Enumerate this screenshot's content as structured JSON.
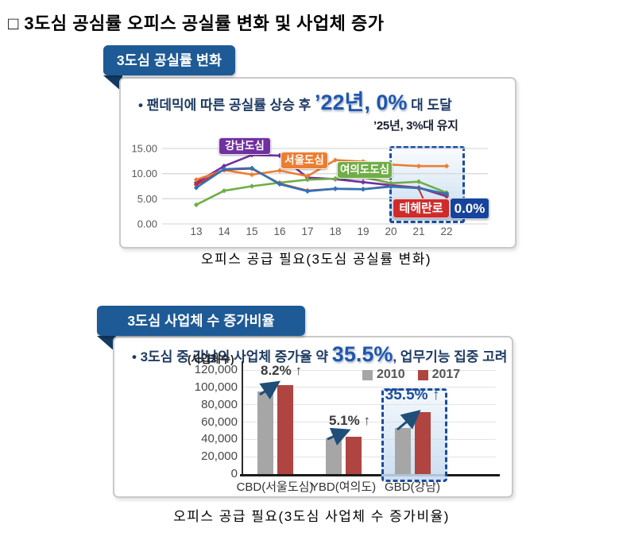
{
  "page": {
    "title": "□ 3도심 공심률 오피스 공실률 변화 및 사업체 증가"
  },
  "vacancy": {
    "tab_title": "3도심 공실률 변화",
    "bullet_prefix": "• 팬데믹에 따른 공실률 상승 후 ",
    "bullet_highlight": "’22년, 0%",
    "bullet_suffix": " 대 도달",
    "caption": "오피스 공급 필요(3도심 공실률 변화)"
  },
  "business": {
    "tab_title": "3도심 사업체 수 증가비율",
    "bullet_prefix": "• 3도심 중 강남의 사업체 증가율 약 ",
    "bullet_highlight": "35.5%",
    "bullet_suffix": ", 업무기능 집중 고려",
    "caption": "오피스 공급 필요(3도심 사업체 수 증가비율)"
  },
  "chart_data": [
    {
      "type": "line",
      "title": "3도심 공실률 변화",
      "x": [
        "13",
        "14",
        "15",
        "16",
        "17",
        "18",
        "19",
        "20",
        "21",
        "22"
      ],
      "yticks": [
        "0.00",
        "5.00",
        "10.00",
        "15.00"
      ],
      "ylim": [
        0,
        15
      ],
      "grid": true,
      "series": [
        {
          "name": "강남도심",
          "color": "#7030a0",
          "values": [
            8.2,
            11.5,
            13.7,
            13.6,
            9.2,
            8.9,
            8.3,
            7.7,
            7.2,
            5.5
          ]
        },
        {
          "name": "서울도심",
          "color": "#ed7d31",
          "values": [
            8.8,
            10.7,
            9.8,
            10.6,
            9.5,
            12.7,
            12.4,
            11.8,
            11.5,
            11.5
          ]
        },
        {
          "name": "여의도도심",
          "color": "#70ad47",
          "values": [
            3.8,
            6.6,
            7.5,
            8.2,
            8.8,
            9.0,
            9.3,
            8.1,
            8.4,
            6.2
          ]
        },
        {
          "name": "테헤란로",
          "color": "#cf2b2b",
          "values": [
            7.8,
            10.8,
            11.0,
            8.0,
            6.6,
            7.0,
            6.9,
            7.5,
            7.2,
            5.8
          ]
        },
        {
          "name": "",
          "color": "#2e75b6",
          "values": [
            7.2,
            10.9,
            11.1,
            7.9,
            6.5,
            7.0,
            6.9,
            7.4,
            7.1,
            6.0
          ]
        }
      ],
      "highlight_range": [
        "20",
        "22"
      ],
      "highlight_label": "’25년, 3%대 유지",
      "value_badge": "0.0%"
    },
    {
      "type": "bar",
      "title": "3도심 사업체 수 증가비율",
      "categories": [
        "CBD(서울도심)",
        "YBD(여의도)",
        "GBD(강남)"
      ],
      "series": [
        {
          "name": "2010",
          "color": "#a6a6a6",
          "values": [
            95000,
            41000,
            53000
          ]
        },
        {
          "name": "2017",
          "color": "#b04441",
          "values": [
            102800,
            43100,
            71800
          ]
        }
      ],
      "ylabel": "(사업체수)",
      "yticks": [
        0,
        20000,
        40000,
        60000,
        80000,
        100000,
        120000
      ],
      "ylim": [
        0,
        120000
      ],
      "grid": true,
      "legend_position": "top-right",
      "annotations": [
        {
          "category": "CBD(서울도심)",
          "text": "8.2% ↑"
        },
        {
          "category": "YBD(여의도)",
          "text": "5.1% ↑"
        },
        {
          "category": "GBD(강남)",
          "text": "35.5% ↑",
          "highlighted": true
        }
      ]
    }
  ]
}
